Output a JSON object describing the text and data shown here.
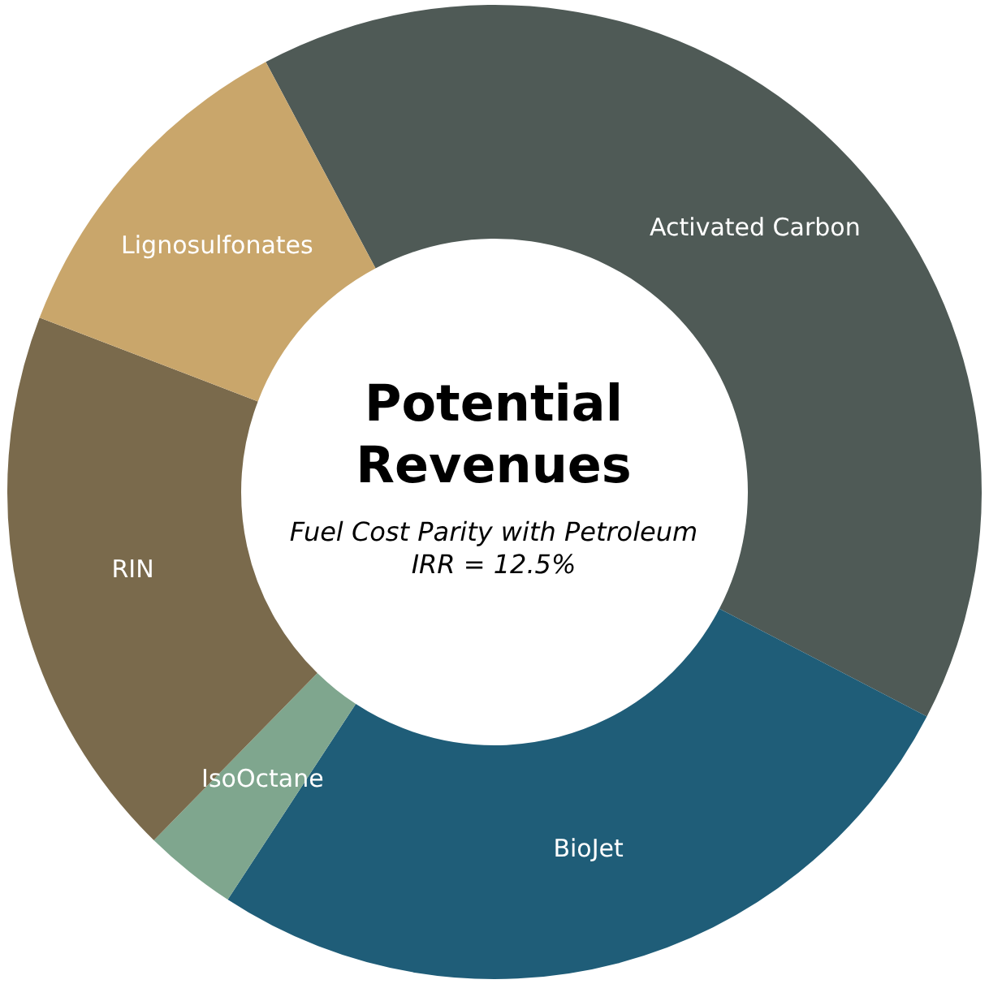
{
  "chart_data": {
    "type": "donut",
    "title": "Potential Revenues",
    "subtitle": "Fuel Cost Parity with Petroleum",
    "annotations": [
      "IRR = 12.5%"
    ],
    "categories": [
      "Activated Carbon",
      "BioJet",
      "IsoOctane",
      "RIN",
      "Lignosulfonates"
    ],
    "values": [
      40.4,
      26.6,
      3.1,
      18.5,
      11.4
    ],
    "colors": [
      "#4f5a56",
      "#1f5d78",
      "#7fa68e",
      "#7a6a4c",
      "#c9a66b"
    ],
    "legend": false
  }
}
